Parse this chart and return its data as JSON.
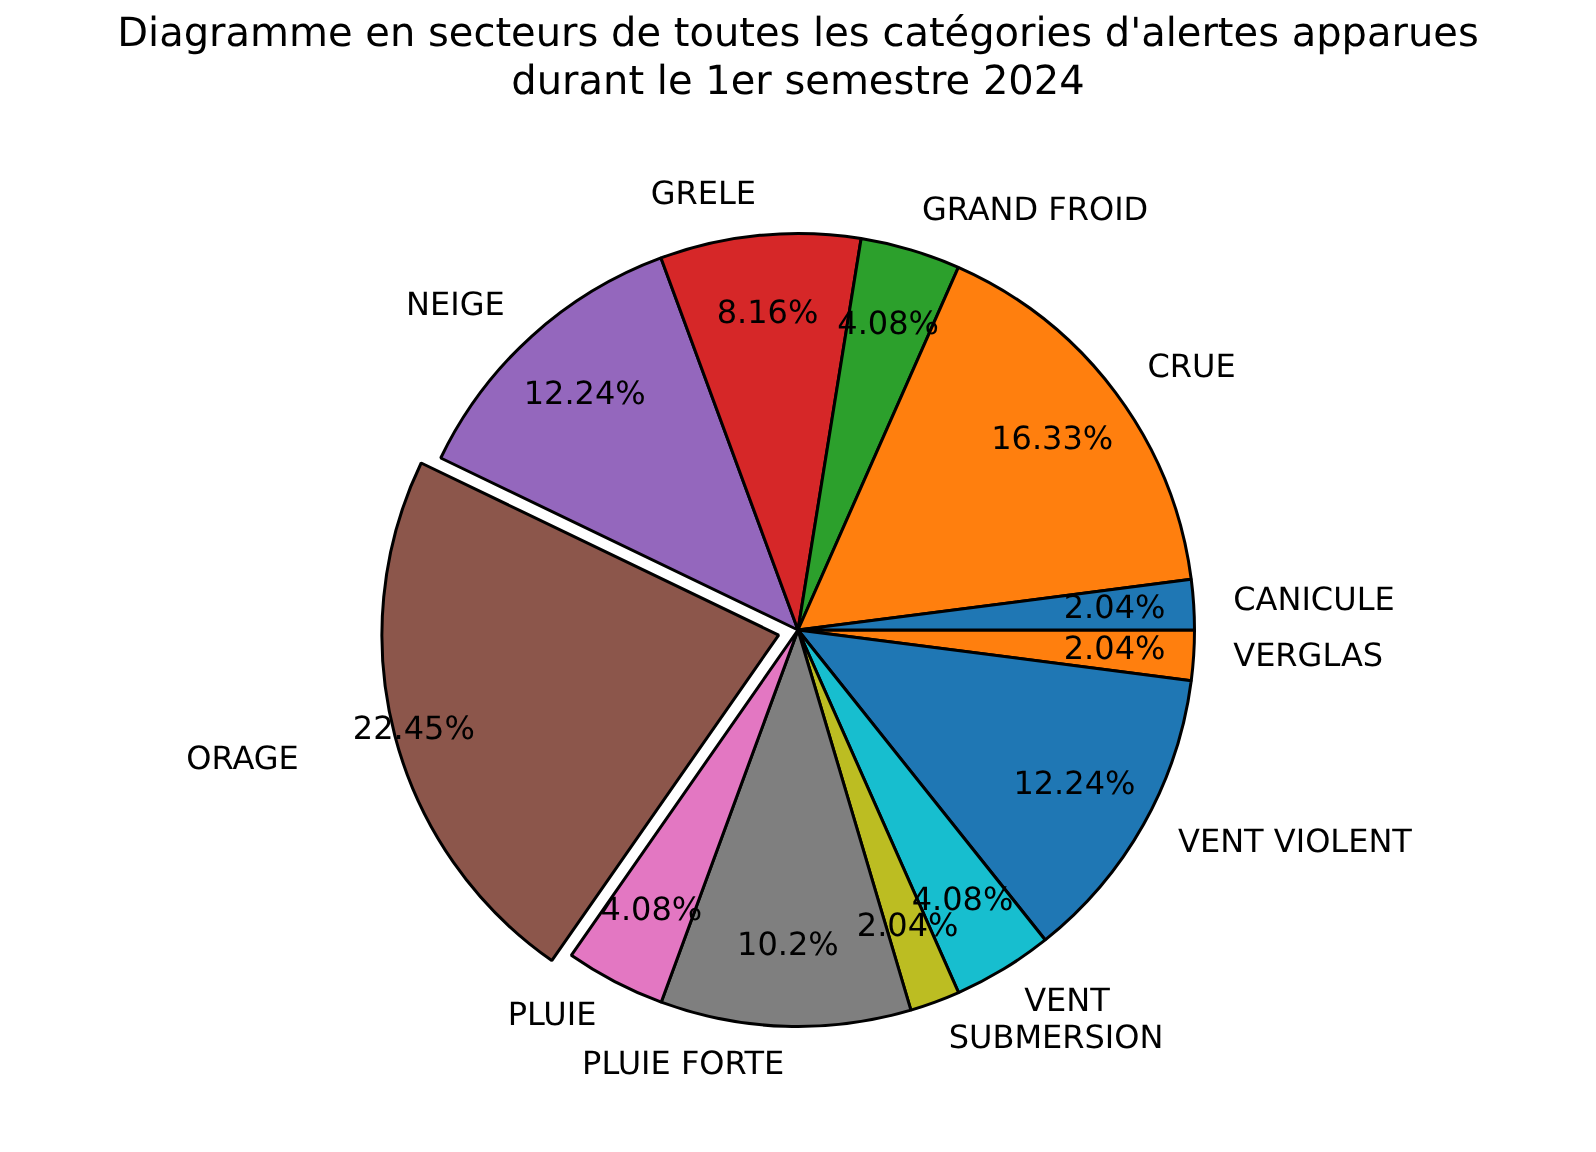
{
  "chart_data": {
    "type": "pie",
    "title": "Diagramme en secteurs de toutes les catégories d'alertes apparues\ndurant le 1er semestre 2024",
    "categories": [
      "CANICULE",
      "CRUE",
      "GRAND FROID",
      "GRELE",
      "NEIGE",
      "ORAGE",
      "PLUIE",
      "PLUIE FORTE",
      "SUBMERSION",
      "VENT",
      "VENT VIOLENT",
      "VERGLAS"
    ],
    "values": [
      2.04,
      16.33,
      4.08,
      8.16,
      12.24,
      22.45,
      4.08,
      10.2,
      2.04,
      4.08,
      12.24,
      2.04
    ],
    "colors": [
      "#1f77b4",
      "#ff7f0e",
      "#2ca02c",
      "#d62728",
      "#9467bd",
      "#8c564b",
      "#e377c2",
      "#7f7f7f",
      "#bcbd22",
      "#17becf",
      "#1f77b4",
      "#ff7f0e"
    ],
    "value_labels": [
      "2.04%",
      "16.33%",
      "4.08%",
      "8.16%",
      "12.24%",
      "22.45%",
      "4.08%",
      "10.2%",
      "2.04%",
      "4.08%",
      "12.24%",
      "2.04%"
    ],
    "legend": false
  }
}
